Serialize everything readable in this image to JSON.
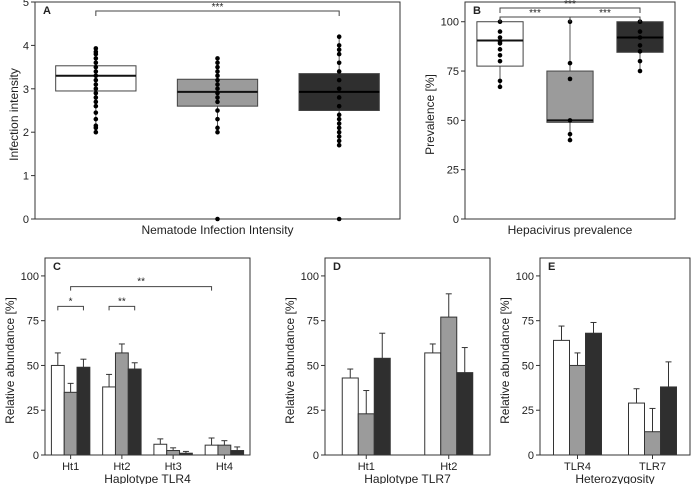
{
  "colors": {
    "white": "#ffffff",
    "grey": "#9b9b9b",
    "dark": "#2f2f2f"
  },
  "chart_data": [
    {
      "type": "box",
      "panel": "A",
      "xlabel": "Nematode Infection Intensity",
      "ylabel": "Infection intensity",
      "ylim": [
        0,
        5
      ],
      "yticks": [
        0,
        1,
        2,
        3,
        4,
        5
      ],
      "grid": false,
      "boxes": [
        {
          "color": "white",
          "q1": 2.95,
          "median": 3.3,
          "q3": 3.53,
          "whisker_low": 2.1,
          "whisker_high": 3.93,
          "points": [
            2.0,
            2.1,
            2.15,
            2.3,
            2.45,
            2.6,
            2.7,
            2.8,
            2.9,
            3.0,
            3.1,
            3.2,
            3.3,
            3.4,
            3.5,
            3.6,
            3.7,
            3.8,
            3.85,
            3.93
          ]
        },
        {
          "color": "grey",
          "q1": 2.6,
          "median": 2.93,
          "q3": 3.22,
          "whisker_low": 2.0,
          "whisker_high": 3.7,
          "points": [
            0.0,
            2.0,
            2.1,
            2.3,
            2.5,
            2.7,
            2.8,
            2.9,
            3.0,
            3.1,
            3.2,
            3.3,
            3.4,
            3.5,
            3.6,
            3.7
          ]
        },
        {
          "color": "dark",
          "q1": 2.5,
          "median": 2.93,
          "q3": 3.35,
          "whisker_low": 1.7,
          "whisker_high": 4.2,
          "points": [
            0.0,
            1.7,
            1.8,
            1.9,
            2.0,
            2.1,
            2.2,
            2.3,
            2.4,
            2.6,
            2.8,
            3.0,
            3.2,
            3.4,
            3.6,
            3.8,
            3.9,
            4.0,
            4.2
          ]
        }
      ],
      "significance": [
        {
          "from": 0,
          "to": 2,
          "label": "***"
        }
      ]
    },
    {
      "type": "box",
      "panel": "B",
      "xlabel": "Hepacivirus prevalence",
      "ylabel": "Prevalence [%]",
      "ylim": [
        0,
        110
      ],
      "yticks": [
        0,
        25,
        50,
        75,
        100
      ],
      "grid": false,
      "boxes": [
        {
          "color": "white",
          "q1": 77.5,
          "median": 90.5,
          "q3": 100,
          "whisker_low": 67,
          "whisker_high": 100,
          "points": [
            67,
            70,
            80,
            83,
            86,
            89,
            90,
            92,
            95,
            100
          ]
        },
        {
          "color": "grey",
          "q1": 49,
          "median": 50,
          "q3": 75,
          "whisker_low": 40,
          "whisker_high": 100,
          "points": [
            40,
            43,
            50,
            71,
            79,
            100
          ]
        },
        {
          "color": "dark",
          "q1": 84.5,
          "median": 92,
          "q3": 100,
          "whisker_low": 75,
          "whisker_high": 100,
          "points": [
            75,
            80,
            85,
            88,
            92,
            95,
            100,
            100
          ]
        }
      ],
      "significance": [
        {
          "from": 0,
          "to": 1,
          "label": "***"
        },
        {
          "from": 1,
          "to": 2,
          "label": "***"
        },
        {
          "from": 0,
          "to": 2,
          "label": "***"
        }
      ]
    },
    {
      "type": "bar",
      "panel": "C",
      "xlabel": "Haplotype TLR4",
      "ylabel": "Relative abundance [%]",
      "ylim": [
        0,
        110
      ],
      "yticks": [
        0,
        25,
        50,
        75,
        100
      ],
      "categories": [
        "Ht1",
        "Ht2",
        "Ht3",
        "Ht4"
      ],
      "series": [
        {
          "color": "white",
          "values": [
            50,
            38,
            6,
            5.5
          ],
          "errors": [
            7,
            7,
            3,
            4
          ]
        },
        {
          "color": "grey",
          "values": [
            35,
            57,
            2.5,
            5.5
          ],
          "errors": [
            5,
            5,
            1.5,
            2.5
          ]
        },
        {
          "color": "dark",
          "values": [
            49,
            48,
            1,
            2.5
          ],
          "errors": [
            4.5,
            3.5,
            1,
            2
          ]
        }
      ],
      "significance": [
        {
          "category": 0,
          "from": 0,
          "to": 2,
          "level": 83,
          "label": "*"
        },
        {
          "category": 1,
          "from": 0,
          "to": 2,
          "level": 83,
          "label": "**"
        },
        {
          "category": 0,
          "category_to": 3,
          "from": 1,
          "to": 0,
          "level": 94,
          "label": "**"
        }
      ]
    },
    {
      "type": "bar",
      "panel": "D",
      "xlabel": "Haplotype TLR7",
      "ylabel": "Relative abundance [%]",
      "ylim": [
        0,
        110
      ],
      "yticks": [
        0,
        25,
        50,
        75,
        100
      ],
      "categories": [
        "Ht1",
        "Ht2"
      ],
      "series": [
        {
          "color": "white",
          "values": [
            43,
            57
          ],
          "errors": [
            5,
            5
          ]
        },
        {
          "color": "grey",
          "values": [
            23,
            77
          ],
          "errors": [
            13,
            13
          ]
        },
        {
          "color": "dark",
          "values": [
            54,
            46
          ],
          "errors": [
            14,
            14
          ]
        }
      ],
      "significance": []
    },
    {
      "type": "bar",
      "panel": "E",
      "xlabel": "Heterozygosity",
      "ylabel": "Relative abundance [%]",
      "ylim": [
        0,
        110
      ],
      "yticks": [
        0,
        25,
        50,
        75,
        100
      ],
      "categories": [
        "TLR4",
        "TLR7"
      ],
      "series": [
        {
          "color": "white",
          "values": [
            64,
            29
          ],
          "errors": [
            8,
            8
          ]
        },
        {
          "color": "grey",
          "values": [
            50,
            13
          ],
          "errors": [
            7,
            13
          ]
        },
        {
          "color": "dark",
          "values": [
            68,
            38
          ],
          "errors": [
            6,
            14
          ]
        }
      ],
      "significance": []
    }
  ]
}
